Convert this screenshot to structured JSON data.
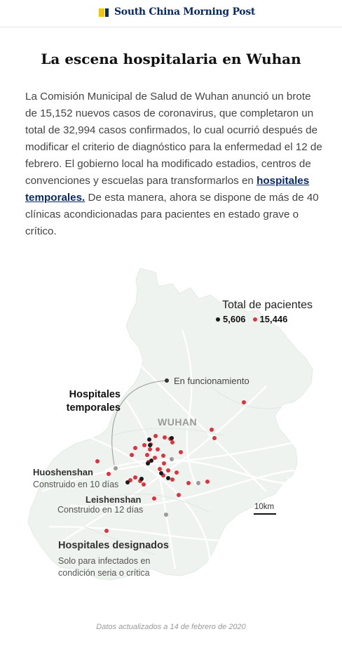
{
  "masthead": {
    "brand": "South China Morning Post",
    "brand_colors": {
      "yellow": "#f6c400",
      "navy": "#0a2a66"
    }
  },
  "article": {
    "headline": "La escena hospitalaria en Wuhan",
    "body_before_link": "La Comisión Municipal de Salud de Wuhan anunció un brote de 15,152 nuevos casos de coronavirus, que completaron un total de 32,994 casos confirmados, lo cual ocurrió después de modificar el criterio de diagnóstico para la enfermedad el 12 de febrero. El gobierno local ha modificado estadios, centros de convenciones y escuelas para transformarlos en ",
    "link_text": "hospitales temporales.",
    "body_after_link": " De esta manera, ahora se dispone de más de 40 clínicas acondicionadas para pacientes en estado grave o crítico."
  },
  "map": {
    "city_label": "WUHAN",
    "legend": {
      "title": "Total de pacientes",
      "items": [
        {
          "value": "5,606",
          "color": "#1a1a1a"
        },
        {
          "value": "15,446",
          "color": "#e0323c"
        }
      ]
    },
    "annotations": {
      "functioning": "En funcionamiento",
      "temporary_hospitals": "Hospitales temporales",
      "huoshenshan_name": "Huoshenshan",
      "huoshenshan_note": "Construido en 10 días",
      "leishenshan_name": "Leishenshan",
      "leishenshan_note": "Construido en 12 días",
      "designated_title": "Hospitales designados",
      "designated_note": "Solo para infectados en condición seria o crítica"
    },
    "scale_bar": "10km",
    "colors": {
      "temporary": "#1a1a1a",
      "designated": "#e0323c",
      "planned": "#9a9a9a",
      "land": "#eef3ef"
    }
  },
  "footer": {
    "note": "Datos actualizados a 14 de febrero de 2020"
  }
}
